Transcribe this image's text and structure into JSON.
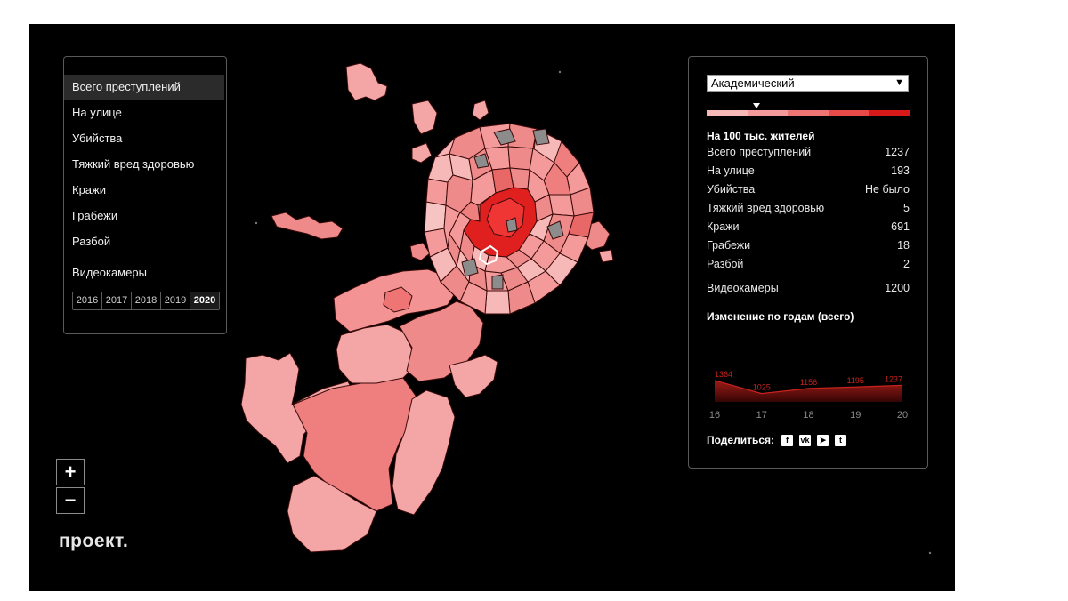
{
  "layers": [
    "Всего преступлений",
    "На улице",
    "Убийства",
    "Тяжкий вред здоровью",
    "Кражи",
    "Грабежи",
    "Разбой"
  ],
  "active_layer": "Всего преступлений",
  "cameras_label": "Видеокамеры",
  "years": [
    "2016",
    "2017",
    "2018",
    "2019",
    "2020"
  ],
  "active_year": "2020",
  "zoom": {
    "in": "+",
    "out": "−"
  },
  "logo": "проект.",
  "district": "Академический",
  "scale_colors": [
    "#f7b8b8",
    "#f49a9a",
    "#ef7575",
    "#e84a4a",
    "#d81919"
  ],
  "stats": {
    "header": "На 100 тыс. жителей",
    "rows": [
      {
        "label": "Всего преступлений",
        "value": "1237"
      },
      {
        "label": "На улице",
        "value": "193"
      },
      {
        "label": "Убийства",
        "value": "Не было"
      },
      {
        "label": "Тяжкий вред здоровью",
        "value": "5"
      },
      {
        "label": "Кражи",
        "value": "691"
      },
      {
        "label": "Грабежи",
        "value": "18"
      },
      {
        "label": "Разбой",
        "value": "2"
      }
    ],
    "cameras": {
      "label": "Видеокамеры",
      "value": "1200"
    }
  },
  "trend": {
    "title": "Изменение по годам (всего)",
    "years": [
      "16",
      "17",
      "18",
      "19",
      "20"
    ],
    "values": [
      1364,
      1025,
      1156,
      1195,
      1237
    ],
    "value_labels": [
      "1364",
      "1025",
      "1156",
      "1195",
      "1237"
    ],
    "color": "#c8231d"
  },
  "share": {
    "label": "Поделиться:",
    "icons": [
      "facebook-icon",
      "vk-icon",
      "telegram-icon",
      "twitter-icon"
    ],
    "glyphs": [
      "f",
      "vk",
      "➤",
      "t"
    ]
  },
  "map_colors": {
    "lightest": "#f8c4c4",
    "light": "#f4a6a6",
    "medium": "#ef8a8a",
    "strong": "#e86767",
    "center": "#e01f1f",
    "nodata": "#8c8c8c"
  }
}
